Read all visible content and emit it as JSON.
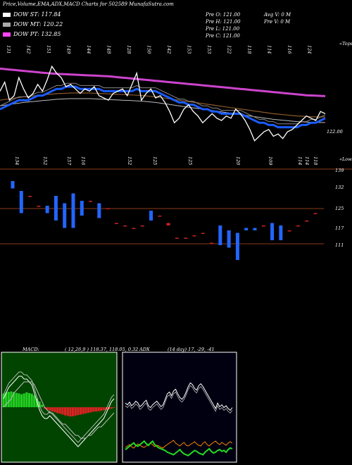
{
  "header": {
    "title": "Price,Volume,EMA,ADX,MACD Charts for 502589 MunafaSutra.com"
  },
  "legend": [
    {
      "label": "DOW ST: 117.84",
      "color": "#ffffff"
    },
    {
      "label": "DOW MT: 120.22",
      "color": "#aaaaaa"
    },
    {
      "label": "DOW PT: 132.85",
      "color": "#ff44ff"
    }
  ],
  "ohlc": {
    "open": "Pre O: 121.00",
    "high": "Pre H: 121.00",
    "low": "Pre L: 121.00",
    "close": "Pre C: 121.00",
    "avg_volume": "Avg V: 0 M",
    "prev_volume": "Pre V: 0 M"
  },
  "price_panel": {
    "top_labels": [
      "131",
      "142",
      "151",
      "149",
      "144",
      "148",
      "128",
      "150",
      "142",
      "153",
      "153",
      "122",
      "118",
      "114",
      "116",
      "124"
    ],
    "bottom_labels": [
      "134",
      "152",
      "157",
      "116",
      "152",
      "125",
      "125",
      "120",
      "109",
      "114",
      "114",
      "118"
    ],
    "top_right_label": "«Tops",
    "bottom_right_label": "«Lows",
    "last_price_label": "122.00"
  },
  "volume_panel": {
    "y_ticks": [
      "139",
      "132",
      "125",
      "117",
      "111"
    ]
  },
  "macd_header": {
    "macd_label": "MACD:",
    "macd_values": "( 12,26,9 ) 118.37, 118.05, 0.32",
    "adx_label": "ADX",
    "adx_values": "(14 day) 17, -29, -41"
  },
  "colors": {
    "ema_short": "#1a5cff",
    "ema_long": "#cc44cc",
    "ema_mid": "#8b5a2b",
    "bull": "#cc2222",
    "bear": "#2266ff",
    "macd_pos": "#22cc22",
    "macd_neg": "#dd2222",
    "adx_main": "#ffffff",
    "adx_plus": "#ff8800",
    "adx_minus": "#22dd22",
    "guide": "#8b3a1a"
  },
  "chart_data": [
    {
      "type": "line",
      "name": "price_ema",
      "close": [
        130,
        134,
        126,
        128,
        136,
        131,
        127,
        129,
        133,
        130,
        135,
        141,
        138,
        136,
        132,
        133,
        131,
        129,
        131,
        130,
        132,
        128,
        127,
        126,
        129,
        130,
        131,
        128,
        133,
        138,
        126,
        129,
        131,
        127,
        128,
        125,
        121,
        116,
        118,
        122,
        124,
        121,
        119,
        116,
        118,
        120,
        118,
        117,
        119,
        118,
        122,
        120,
        117,
        113,
        108,
        110,
        112,
        113,
        110,
        111,
        109,
        112,
        113,
        115,
        117,
        119,
        118,
        117,
        121,
        120
      ],
      "ema_short": [
        122,
        123,
        124,
        125,
        126,
        126,
        126,
        127,
        128,
        128,
        129,
        130,
        131,
        131,
        132,
        132,
        132,
        131,
        131,
        131,
        131,
        131,
        130,
        130,
        130,
        130,
        130,
        130,
        130,
        131,
        130,
        130,
        130,
        130,
        129,
        128,
        127,
        126,
        125,
        125,
        124,
        124,
        123,
        122,
        122,
        121,
        121,
        120,
        120,
        120,
        120,
        120,
        119,
        118,
        117,
        116,
        116,
        115,
        115,
        114,
        114,
        114,
        114,
        114,
        115,
        115,
        116,
        116,
        117,
        118
      ],
      "ema_long": [
        140,
        139.8,
        139.6,
        139.4,
        139.2,
        139,
        138.8,
        138.6,
        138.4,
        138.2,
        138,
        137.8,
        137.7,
        137.6,
        137.5,
        137.4,
        137.3,
        137.2,
        137.1,
        137,
        136.9,
        136.8,
        136.7,
        136.6,
        136.4,
        136.2,
        136,
        135.8,
        135.6,
        135.4,
        135.2,
        135,
        134.8,
        134.6,
        134.4,
        134.2,
        134,
        133.8,
        133.6,
        133.4,
        133.2,
        133,
        132.8,
        132.6,
        132.4,
        132.2,
        132,
        131.8,
        131.6,
        131.4,
        131.2,
        131,
        130.8,
        130.6,
        130.4,
        130.2,
        130,
        129.8,
        129.6,
        129.4,
        129.2,
        129,
        128.8,
        128.6,
        128.4,
        128.2,
        128.1,
        128,
        127.9,
        127.8
      ],
      "ema_mid": [
        126,
        126.3,
        126.6,
        126.9,
        127.2,
        127.5,
        127.7,
        127.9,
        128.1,
        128.3,
        128.5,
        128.7,
        128.9,
        129,
        129.1,
        129.2,
        129.2,
        129.2,
        129.2,
        129.2,
        129.1,
        129,
        128.9,
        128.8,
        128.7,
        128.6,
        128.5,
        128.4,
        128.3,
        128.2,
        128.1,
        127.9,
        127.7,
        127.5,
        127.2,
        126.9,
        126.6,
        126.3,
        126,
        125.7,
        125.4,
        125.1,
        124.8,
        124.5,
        124.2,
        123.9,
        123.6,
        123.3,
        123,
        122.7,
        122.4,
        122.1,
        121.8,
        121.5,
        121.2,
        120.9,
        120.6,
        120.3,
        120,
        119.8,
        119.6,
        119.4,
        119.2,
        119,
        118.9,
        118.8,
        118.7,
        118.6,
        118.6,
        118.6
      ]
    },
    {
      "type": "bar",
      "name": "candles",
      "candles": [
        {
          "o": 137,
          "c": 134
        },
        {
          "o": 133,
          "c": 124
        },
        {
          "o": 131,
          "c": 131
        },
        {
          "o": 127,
          "c": 127
        },
        {
          "o": 127,
          "c": 124
        },
        {
          "o": 131,
          "c": 121
        },
        {
          "o": 128,
          "c": 118
        },
        {
          "o": 132,
          "c": 118
        },
        {
          "o": 129,
          "c": 123
        },
        {
          "o": 129,
          "c": 129
        },
        {
          "o": 128,
          "c": 122
        },
        {
          "o": 126,
          "c": 126
        },
        {
          "o": 120,
          "c": 120
        },
        {
          "o": 119,
          "c": 119
        },
        {
          "o": 118,
          "c": 118
        },
        {
          "o": 119,
          "c": 119
        },
        {
          "o": 125,
          "c": 121
        },
        {
          "o": 123,
          "c": 123
        },
        {
          "o": 119,
          "c": 120
        },
        {
          "o": 114,
          "c": 114
        },
        {
          "o": 114,
          "c": 114
        },
        {
          "o": 115,
          "c": 115
        },
        {
          "o": 116,
          "c": 116
        },
        {
          "o": 112,
          "c": 112
        },
        {
          "o": 119,
          "c": 111
        },
        {
          "o": 117,
          "c": 110
        },
        {
          "o": 116,
          "c": 105
        },
        {
          "o": 118,
          "c": 117
        },
        {
          "o": 118,
          "c": 117
        },
        {
          "o": 119,
          "c": 119
        },
        {
          "o": 120,
          "c": 113
        },
        {
          "o": 119,
          "c": 113
        },
        {
          "o": 117,
          "c": 117
        },
        {
          "o": 119,
          "c": 119
        },
        {
          "o": 121,
          "c": 121
        },
        {
          "o": 124,
          "c": 124
        }
      ]
    },
    {
      "type": "bar",
      "name": "macd",
      "histogram": [
        4.8,
        5.2,
        5.5,
        5.6,
        5.4,
        5.1,
        4.9,
        4.6,
        4.9,
        5.3,
        5.0,
        4.8,
        4.2,
        3.1,
        2.0,
        0.9,
        -0.5,
        -0.9,
        -1.2,
        -1.5,
        -1.8,
        -2.1,
        -2.3,
        -2.6,
        -2.9,
        -3.1,
        -3.3,
        -3.2,
        -3.0,
        -2.8,
        -2.6,
        -2.4,
        -2.2,
        -2.0,
        -1.8,
        -1.6,
        -1.5,
        -1.4,
        -1.3,
        -1.1,
        -0.9,
        -0.7,
        -0.5,
        -0.2
      ],
      "macd_line": [
        3,
        5,
        7,
        8,
        9,
        10,
        11,
        11,
        10,
        10,
        9,
        8,
        5,
        2,
        -1,
        -3,
        -4,
        -4,
        -3,
        -4,
        -5,
        -6,
        -7,
        -8,
        -9,
        -10,
        -11,
        -12,
        -13,
        -14,
        -13,
        -12,
        -11,
        -10,
        -9,
        -8,
        -7,
        -6,
        -5,
        -4,
        -2,
        0,
        2,
        3
      ],
      "signal_line": [
        0,
        1,
        2,
        3,
        5,
        6,
        7,
        8,
        9,
        9,
        9,
        9,
        8,
        6,
        4,
        2,
        0,
        -1,
        -2,
        -2,
        -3,
        -4,
        -5,
        -6,
        -6,
        -7,
        -8,
        -9,
        -10,
        -10,
        -11,
        -11,
        -11,
        -10,
        -10,
        -9,
        -8,
        -7,
        -7,
        -6,
        -5,
        -4,
        -3,
        -2
      ]
    },
    {
      "type": "line",
      "name": "adx",
      "adx": [
        60,
        58,
        61,
        57,
        59,
        62,
        60,
        56,
        58,
        61,
        63,
        57,
        55,
        58,
        60,
        62,
        59,
        56,
        58,
        64,
        70,
        72,
        68,
        73,
        75,
        70,
        66,
        64,
        67,
        72,
        78,
        82,
        80,
        76,
        74,
        79,
        81,
        78,
        74,
        70,
        66,
        62,
        58,
        54,
        60,
        56,
        58,
        55,
        57,
        54,
        52,
        55
      ],
      "plus_di": [
        20,
        22,
        24,
        21,
        19,
        22,
        25,
        23,
        21,
        20,
        22,
        24,
        26,
        24,
        21,
        23,
        22,
        20,
        19,
        22,
        24,
        26,
        28,
        30,
        26,
        24,
        22,
        25,
        27,
        23,
        22,
        24,
        26,
        28,
        25,
        23,
        22,
        26,
        28,
        24,
        22,
        25,
        27,
        29,
        26,
        24,
        27,
        25,
        23,
        26,
        28,
        26
      ],
      "minus_di": [
        14,
        16,
        18,
        20,
        22,
        19,
        18,
        20,
        22,
        24,
        21,
        19,
        22,
        24,
        20,
        18,
        16,
        15,
        14,
        13,
        11,
        10,
        9,
        8,
        10,
        12,
        14,
        11,
        9,
        8,
        7,
        9,
        11,
        13,
        12,
        10,
        9,
        8,
        11,
        13,
        15,
        12,
        10,
        11,
        13,
        14,
        12,
        13,
        11,
        14,
        16,
        15
      ]
    }
  ]
}
